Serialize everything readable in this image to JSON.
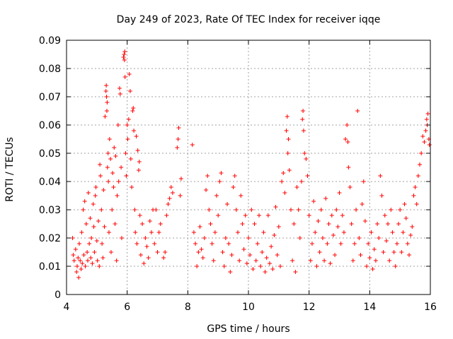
{
  "chart_data": {
    "type": "scatter",
    "title": "Day 249 of 2023, Rate Of TEC Index for receiver iqqe",
    "xlabel": "GPS time / hours",
    "ylabel": "ROTI / TECUs",
    "xlim": [
      4,
      16
    ],
    "ylim": [
      0,
      0.09
    ],
    "x_ticks": [
      "4",
      "6",
      "8",
      "10",
      "12",
      "14",
      "16"
    ],
    "y_ticks": [
      "0",
      "0.01",
      "0.02",
      "0.03",
      "0.04",
      "0.05",
      "0.06",
      "0.07",
      "0.08",
      "0.09"
    ],
    "grid": true,
    "marker": "+",
    "color": "#ff0000",
    "series": [
      {
        "points": [
          [
            4.2,
            0.02
          ],
          [
            4.22,
            0.014
          ],
          [
            4.25,
            0.012
          ],
          [
            4.3,
            0.016
          ],
          [
            4.33,
            0.008
          ],
          [
            4.35,
            0.01
          ],
          [
            4.38,
            0.013
          ],
          [
            4.4,
            0.006
          ],
          [
            4.42,
            0.018
          ],
          [
            4.45,
            0.012
          ],
          [
            4.48,
            0.009
          ],
          [
            4.5,
            0.022
          ],
          [
            4.52,
            0.011
          ],
          [
            4.55,
            0.03
          ],
          [
            4.57,
            0.014
          ],
          [
            4.6,
            0.033
          ],
          [
            4.62,
            0.01
          ],
          [
            4.65,
            0.025
          ],
          [
            4.68,
            0.015
          ],
          [
            4.7,
            0.012
          ],
          [
            4.72,
            0.036
          ],
          [
            4.75,
            0.018
          ],
          [
            4.78,
            0.027
          ],
          [
            4.8,
            0.013
          ],
          [
            4.82,
            0.02
          ],
          [
            4.85,
            0.011
          ],
          [
            4.88,
            0.032
          ],
          [
            4.9,
            0.024
          ],
          [
            4.92,
            0.015
          ],
          [
            4.95,
            0.035
          ],
          [
            4.97,
            0.038
          ],
          [
            5.0,
            0.019
          ],
          [
            5.02,
            0.012
          ],
          [
            5.05,
            0.026
          ],
          [
            5.08,
            0.01
          ],
          [
            5.1,
            0.046
          ],
          [
            5.12,
            0.042
          ],
          [
            5.15,
            0.03
          ],
          [
            5.17,
            0.018
          ],
          [
            5.2,
            0.013
          ],
          [
            5.22,
            0.037
          ],
          [
            5.25,
            0.024
          ],
          [
            5.27,
            0.063
          ],
          [
            5.3,
            0.072
          ],
          [
            5.31,
            0.074
          ],
          [
            5.32,
            0.07
          ],
          [
            5.33,
            0.065
          ],
          [
            5.34,
            0.068
          ],
          [
            5.35,
            0.045
          ],
          [
            5.37,
            0.05
          ],
          [
            5.38,
            0.04
          ],
          [
            5.4,
            0.022
          ],
          [
            5.42,
            0.055
          ],
          [
            5.45,
            0.048
          ],
          [
            5.47,
            0.015
          ],
          [
            5.5,
            0.03
          ],
          [
            5.52,
            0.043
          ],
          [
            5.55,
            0.038
          ],
          [
            5.57,
            0.052
          ],
          [
            5.6,
            0.025
          ],
          [
            5.62,
            0.049
          ],
          [
            5.65,
            0.012
          ],
          [
            5.67,
            0.035
          ],
          [
            5.7,
            0.06
          ],
          [
            5.72,
            0.04
          ],
          [
            5.75,
            0.073
          ],
          [
            5.77,
            0.071
          ],
          [
            5.8,
            0.045
          ],
          [
            5.82,
            0.02
          ],
          [
            5.88,
            0.084
          ],
          [
            5.9,
            0.085
          ],
          [
            5.91,
            0.083
          ],
          [
            5.92,
            0.086
          ],
          [
            5.93,
            0.077
          ],
          [
            5.95,
            0.05
          ],
          [
            5.97,
            0.042
          ],
          [
            6.0,
            0.06
          ],
          [
            6.02,
            0.055
          ],
          [
            6.05,
            0.062
          ],
          [
            6.07,
            0.078
          ],
          [
            6.1,
            0.072
          ],
          [
            6.12,
            0.048
          ],
          [
            6.15,
            0.038
          ],
          [
            6.18,
            0.065
          ],
          [
            6.2,
            0.066
          ],
          [
            6.22,
            0.058
          ],
          [
            6.25,
            0.03
          ],
          [
            6.27,
            0.022
          ],
          [
            6.3,
            0.056
          ],
          [
            6.32,
            0.018
          ],
          [
            6.35,
            0.051
          ],
          [
            6.38,
            0.044
          ],
          [
            6.4,
            0.047
          ],
          [
            6.42,
            0.028
          ],
          [
            6.45,
            0.014
          ],
          [
            6.5,
            0.025
          ],
          [
            6.55,
            0.011
          ],
          [
            6.6,
            0.02
          ],
          [
            6.65,
            0.017
          ],
          [
            6.7,
            0.013
          ],
          [
            6.75,
            0.026
          ],
          [
            6.8,
            0.022
          ],
          [
            6.85,
            0.03
          ],
          [
            6.9,
            0.018
          ],
          [
            6.95,
            0.03
          ],
          [
            7.0,
            0.015
          ],
          [
            7.05,
            0.022
          ],
          [
            7.1,
            0.025
          ],
          [
            7.2,
            0.013
          ],
          [
            7.25,
            0.015
          ],
          [
            7.3,
            0.028
          ],
          [
            7.35,
            0.032
          ],
          [
            7.4,
            0.034
          ],
          [
            7.45,
            0.038
          ],
          [
            7.5,
            0.036
          ],
          [
            7.65,
            0.052
          ],
          [
            7.68,
            0.055
          ],
          [
            7.7,
            0.059
          ],
          [
            7.75,
            0.035
          ],
          [
            7.78,
            0.041
          ],
          [
            8.15,
            0.053
          ],
          [
            8.2,
            0.022
          ],
          [
            8.25,
            0.018
          ],
          [
            8.3,
            0.01
          ],
          [
            8.35,
            0.015
          ],
          [
            8.4,
            0.024
          ],
          [
            8.45,
            0.016
          ],
          [
            8.5,
            0.013
          ],
          [
            8.55,
            0.02
          ],
          [
            8.6,
            0.037
          ],
          [
            8.65,
            0.042
          ],
          [
            8.7,
            0.03
          ],
          [
            8.75,
            0.025
          ],
          [
            8.8,
            0.018
          ],
          [
            8.85,
            0.012
          ],
          [
            8.9,
            0.022
          ],
          [
            8.95,
            0.035
          ],
          [
            9.0,
            0.028
          ],
          [
            9.05,
            0.04
          ],
          [
            9.1,
            0.043
          ],
          [
            9.15,
            0.015
          ],
          [
            9.2,
            0.01
          ],
          [
            9.25,
            0.02
          ],
          [
            9.3,
            0.032
          ],
          [
            9.35,
            0.018
          ],
          [
            9.4,
            0.008
          ],
          [
            9.45,
            0.014
          ],
          [
            9.5,
            0.038
          ],
          [
            9.55,
            0.042
          ],
          [
            9.6,
            0.03
          ],
          [
            9.65,
            0.022
          ],
          [
            9.7,
            0.012
          ],
          [
            9.75,
            0.035
          ],
          [
            9.8,
            0.025
          ],
          [
            9.85,
            0.016
          ],
          [
            9.9,
            0.028
          ],
          [
            9.95,
            0.011
          ],
          [
            10.0,
            0.02
          ],
          [
            10.05,
            0.014
          ],
          [
            10.1,
            0.03
          ],
          [
            10.15,
            0.009
          ],
          [
            10.2,
            0.025
          ],
          [
            10.25,
            0.012
          ],
          [
            10.3,
            0.018
          ],
          [
            10.35,
            0.028
          ],
          [
            10.4,
            0.01
          ],
          [
            10.45,
            0.015
          ],
          [
            10.5,
            0.022
          ],
          [
            10.55,
            0.008
          ],
          [
            10.6,
            0.013
          ],
          [
            10.65,
            0.028
          ],
          [
            10.7,
            0.011
          ],
          [
            10.75,
            0.017
          ],
          [
            10.8,
            0.009
          ],
          [
            10.85,
            0.021
          ],
          [
            10.9,
            0.031
          ],
          [
            10.95,
            0.014
          ],
          [
            11.0,
            0.024
          ],
          [
            11.05,
            0.01
          ],
          [
            11.1,
            0.04
          ],
          [
            11.15,
            0.043
          ],
          [
            11.2,
            0.036
          ],
          [
            11.25,
            0.058
          ],
          [
            11.28,
            0.063
          ],
          [
            11.3,
            0.05
          ],
          [
            11.32,
            0.055
          ],
          [
            11.35,
            0.044
          ],
          [
            11.4,
            0.03
          ],
          [
            11.45,
            0.012
          ],
          [
            11.5,
            0.025
          ],
          [
            11.55,
            0.008
          ],
          [
            11.6,
            0.038
          ],
          [
            11.65,
            0.03
          ],
          [
            11.7,
            0.02
          ],
          [
            11.75,
            0.04
          ],
          [
            11.78,
            0.062
          ],
          [
            11.8,
            0.065
          ],
          [
            11.82,
            0.058
          ],
          [
            11.85,
            0.05
          ],
          [
            11.9,
            0.048
          ],
          [
            11.95,
            0.042
          ],
          [
            12.0,
            0.028
          ],
          [
            12.05,
            0.012
          ],
          [
            12.1,
            0.018
          ],
          [
            12.15,
            0.033
          ],
          [
            12.2,
            0.022
          ],
          [
            12.25,
            0.01
          ],
          [
            12.3,
            0.026
          ],
          [
            12.35,
            0.015
          ],
          [
            12.4,
            0.03
          ],
          [
            12.45,
            0.02
          ],
          [
            12.5,
            0.012
          ],
          [
            12.55,
            0.034
          ],
          [
            12.6,
            0.018
          ],
          [
            12.65,
            0.025
          ],
          [
            12.7,
            0.011
          ],
          [
            12.75,
            0.028
          ],
          [
            12.8,
            0.021
          ],
          [
            12.85,
            0.014
          ],
          [
            12.9,
            0.03
          ],
          [
            12.95,
            0.024
          ],
          [
            13.0,
            0.036
          ],
          [
            13.05,
            0.018
          ],
          [
            13.1,
            0.028
          ],
          [
            13.15,
            0.022
          ],
          [
            13.2,
            0.055
          ],
          [
            13.25,
            0.06
          ],
          [
            13.28,
            0.054
          ],
          [
            13.3,
            0.045
          ],
          [
            13.35,
            0.038
          ],
          [
            13.4,
            0.025
          ],
          [
            13.45,
            0.012
          ],
          [
            13.5,
            0.018
          ],
          [
            13.55,
            0.03
          ],
          [
            13.6,
            0.065
          ],
          [
            13.65,
            0.02
          ],
          [
            13.7,
            0.014
          ],
          [
            13.75,
            0.032
          ],
          [
            13.8,
            0.04
          ],
          [
            13.85,
            0.026
          ],
          [
            13.9,
            0.01
          ],
          [
            13.95,
            0.018
          ],
          [
            14.0,
            0.013
          ],
          [
            14.05,
            0.022
          ],
          [
            14.1,
            0.009
          ],
          [
            14.15,
            0.016
          ],
          [
            14.2,
            0.012
          ],
          [
            14.25,
            0.025
          ],
          [
            14.3,
            0.02
          ],
          [
            14.35,
            0.042
          ],
          [
            14.4,
            0.035
          ],
          [
            14.45,
            0.015
          ],
          [
            14.5,
            0.028
          ],
          [
            14.55,
            0.019
          ],
          [
            14.6,
            0.025
          ],
          [
            14.65,
            0.012
          ],
          [
            14.7,
            0.03
          ],
          [
            14.75,
            0.022
          ],
          [
            14.8,
            0.015
          ],
          [
            14.85,
            0.01
          ],
          [
            14.9,
            0.018
          ],
          [
            14.95,
            0.025
          ],
          [
            15.0,
            0.03
          ],
          [
            15.05,
            0.015
          ],
          [
            15.1,
            0.022
          ],
          [
            15.15,
            0.032
          ],
          [
            15.2,
            0.027
          ],
          [
            15.25,
            0.018
          ],
          [
            15.3,
            0.014
          ],
          [
            15.35,
            0.021
          ],
          [
            15.4,
            0.024
          ],
          [
            15.45,
            0.035
          ],
          [
            15.5,
            0.038
          ],
          [
            15.55,
            0.032
          ],
          [
            15.6,
            0.042
          ],
          [
            15.65,
            0.046
          ],
          [
            15.7,
            0.05
          ],
          [
            15.75,
            0.056
          ],
          [
            15.8,
            0.054
          ],
          [
            15.85,
            0.058
          ],
          [
            15.88,
            0.062
          ],
          [
            15.9,
            0.06
          ],
          [
            15.92,
            0.064
          ],
          [
            15.95,
            0.055
          ],
          [
            15.97,
            0.053
          ]
        ]
      }
    ]
  }
}
